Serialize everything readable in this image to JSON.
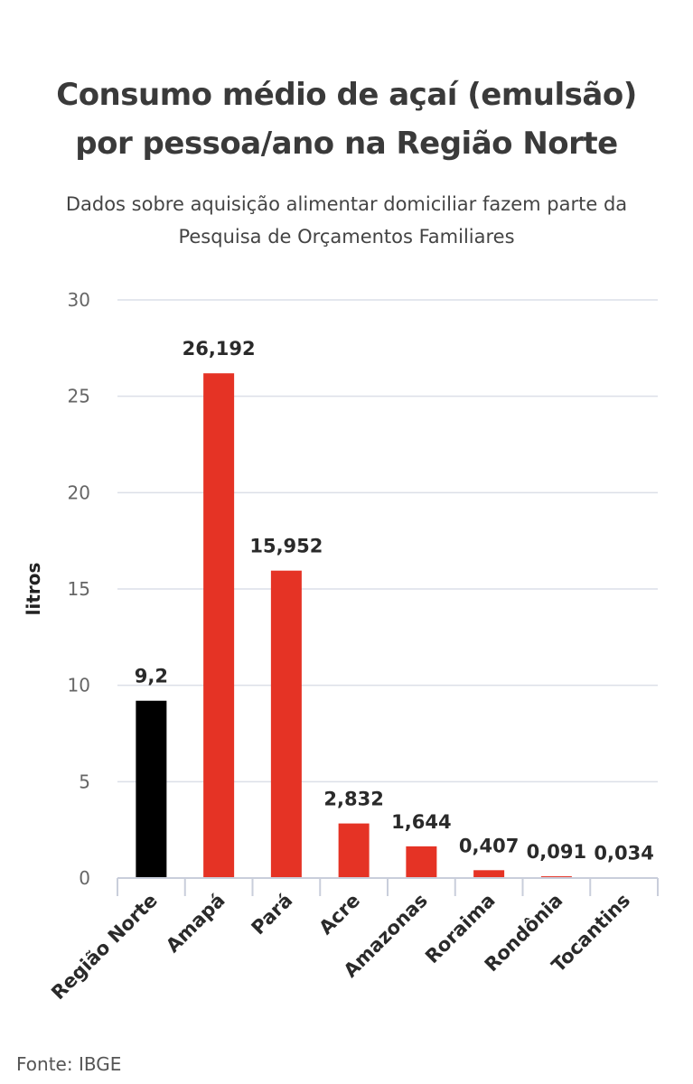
{
  "header": {
    "title_line1": "Consumo médio de açaí (emulsão)",
    "title_line2": "por pessoa/ano na Região Norte",
    "subtitle_line1": "Dados sobre aquisição alimentar domiciliar fazem parte da",
    "subtitle_line2": "Pesquisa de Orçamentos Familiares"
  },
  "footer": {
    "source": "Fonte: IBGE"
  },
  "chart_data": {
    "type": "bar",
    "title": "Consumo médio de açaí (emulsão) por pessoa/ano na Região Norte",
    "subtitle": "Dados sobre aquisição alimentar domiciliar fazem parte da Pesquisa de Orçamentos Familiares",
    "xlabel": "",
    "ylabel": "litros",
    "ylim": [
      0,
      30
    ],
    "yticks": [
      "0",
      "5",
      "10",
      "15",
      "20",
      "25",
      "30"
    ],
    "grid": true,
    "categories": [
      "Região Norte",
      "Amapá",
      "Pará",
      "Acre",
      "Amazonas",
      "Roraima",
      "Rondônia",
      "Tocantins"
    ],
    "values": [
      9.2,
      26.192,
      15.952,
      2.832,
      1.644,
      0.407,
      0.091,
      0.034
    ],
    "value_labels": [
      "9,2",
      "26,192",
      "15,952",
      "2,832",
      "1,644",
      "0,407",
      "0,091",
      "0,034"
    ],
    "colors": [
      "#000000",
      "#e53325",
      "#e53325",
      "#e53325",
      "#e53325",
      "#e53325",
      "#e53325",
      "#e53325"
    ],
    "gridline_color": "#dcdfe8",
    "axis_color": "#c9cedb"
  }
}
